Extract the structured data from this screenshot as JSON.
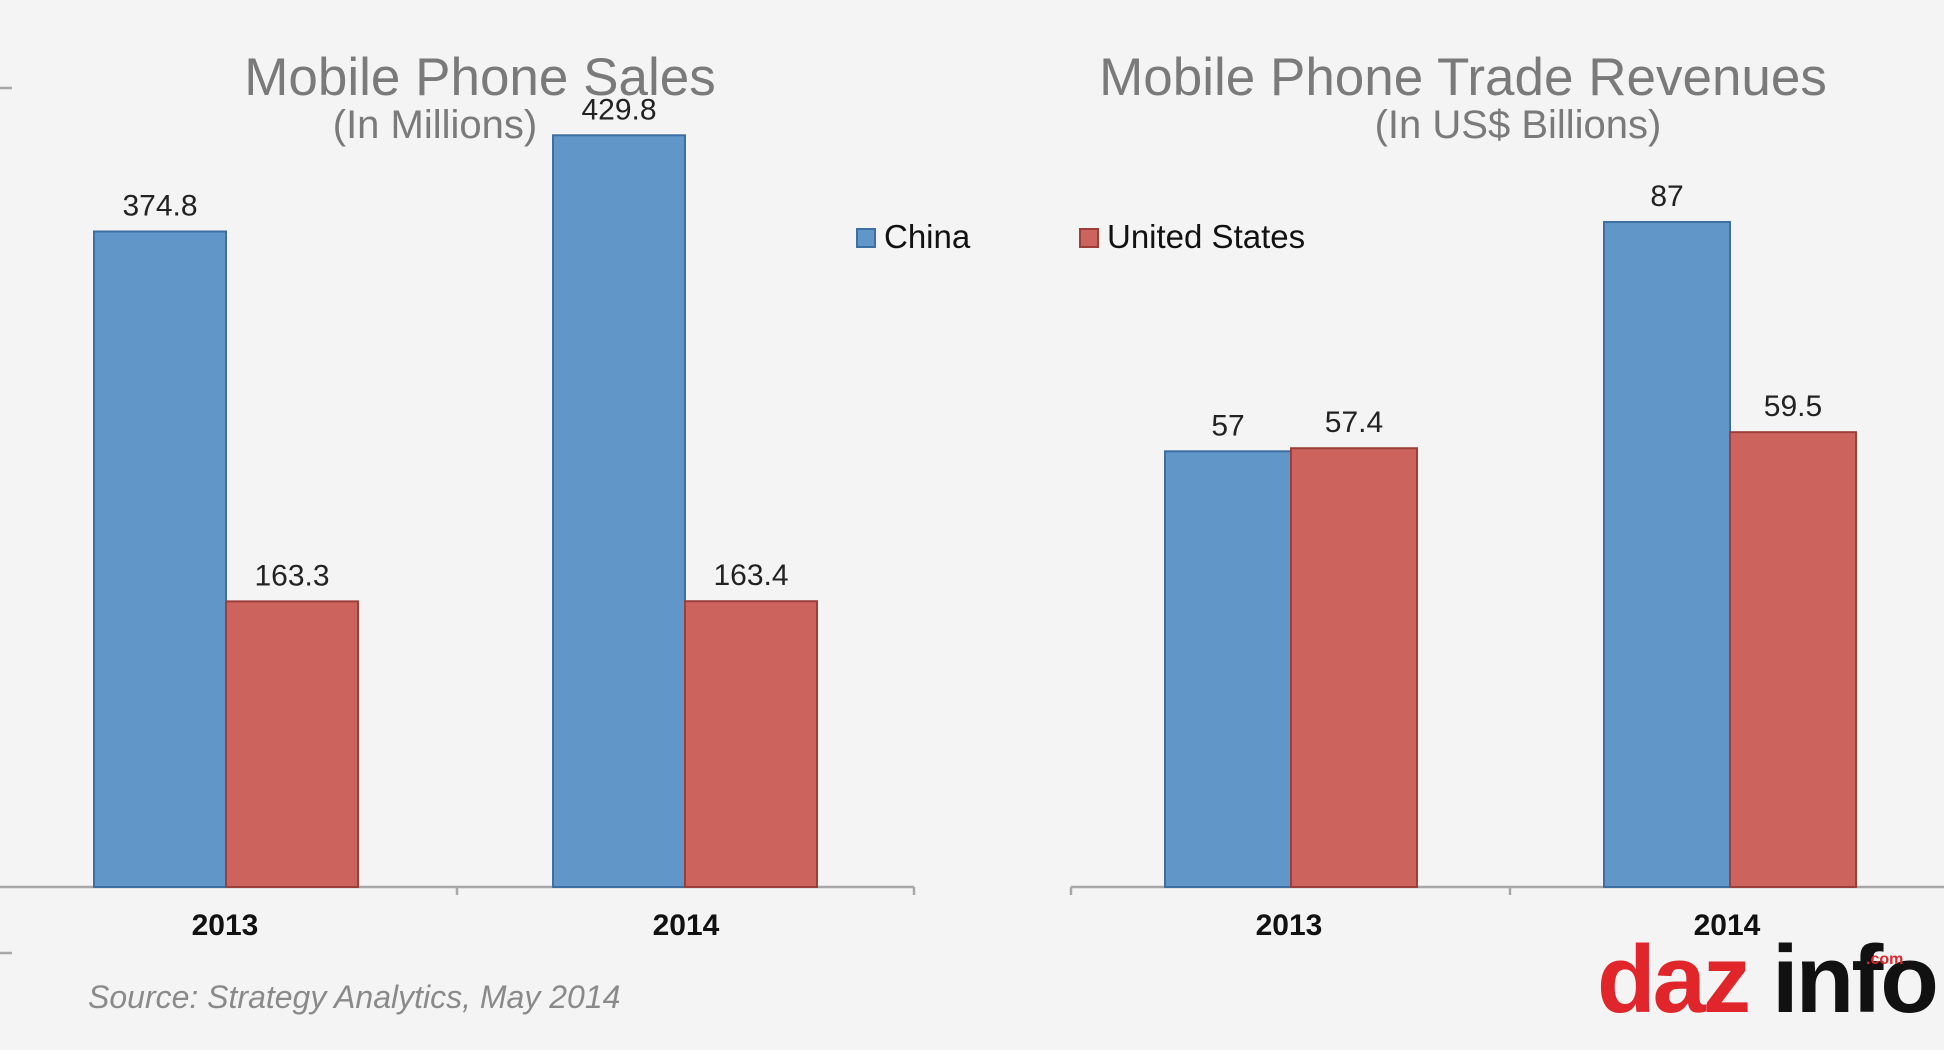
{
  "colors": {
    "china": "#6196c9",
    "china_edge": "#3e6fa3",
    "us": "#cc645d",
    "us_edge": "#9c3f3a",
    "logo_red": "#e0252b",
    "logo_dark": "#111111"
  },
  "legend": {
    "china": "China",
    "us": "United States"
  },
  "source": "Source: Strategy Analytics, May 2014",
  "logo": {
    "part1": "daz",
    "part2": "info",
    "com": ".com"
  },
  "chart_data": [
    {
      "type": "bar",
      "title": "Mobile Phone Sales",
      "subtitle": "(In Millions)",
      "categories": [
        "2013",
        "2014"
      ],
      "series": [
        {
          "name": "China",
          "values": [
            374.8,
            429.8
          ],
          "labels": [
            "374.8",
            "429.8"
          ]
        },
        {
          "name": "United States",
          "values": [
            163.3,
            163.4
          ],
          "labels": [
            "163.3",
            "163.4"
          ]
        }
      ],
      "ylim": [
        0,
        500
      ],
      "grid": false
    },
    {
      "type": "bar",
      "title": "Mobile Phone Trade Revenues",
      "subtitle": "(In US$ Billions)",
      "categories": [
        "2013",
        "2014"
      ],
      "series": [
        {
          "name": "China",
          "values": [
            57,
            87
          ],
          "labels": [
            "57",
            "87"
          ]
        },
        {
          "name": "United States",
          "values": [
            57.4,
            59.5
          ],
          "labels": [
            "57.4",
            "59.5"
          ]
        }
      ],
      "ylim": [
        0,
        100
      ],
      "grid": false
    }
  ]
}
